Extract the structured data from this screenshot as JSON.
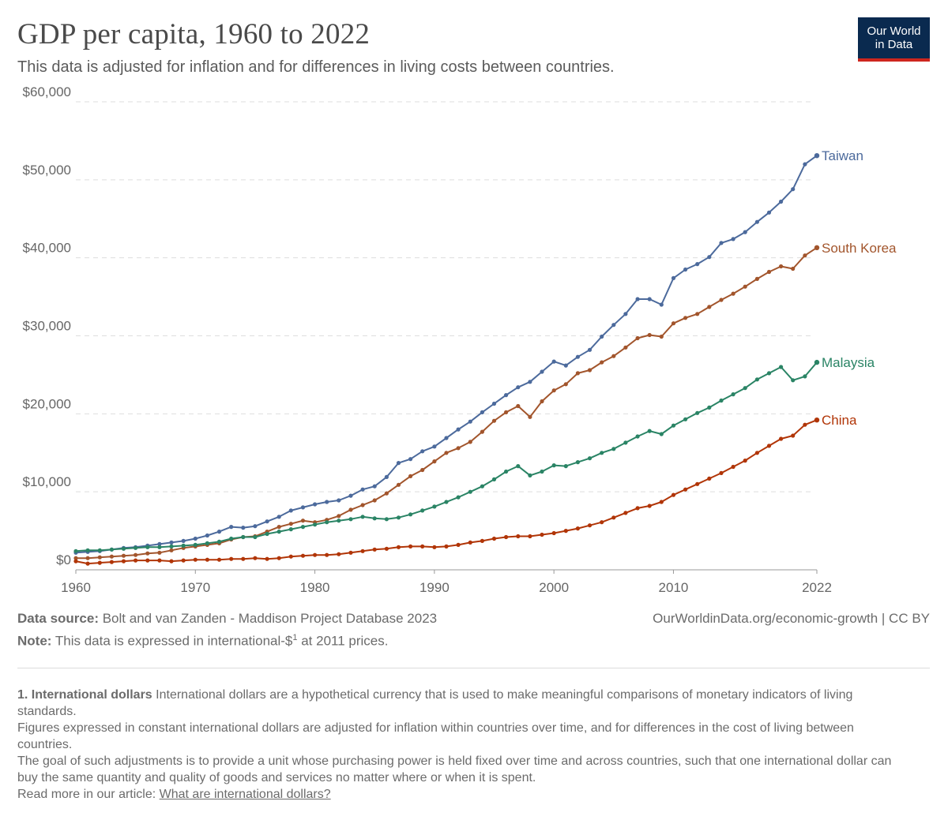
{
  "header": {
    "title": "GDP per capita, 1960 to 2022",
    "subtitle": "This data is adjusted for inflation and for differences in living costs between countries."
  },
  "logo": {
    "line1": "Our World",
    "line2": "in Data"
  },
  "colors": {
    "Taiwan": "#4c6a9c",
    "South Korea": "#a2552c",
    "Malaysia": "#2a8465",
    "China": "#b13507",
    "logo_bg": "#0a2a4f",
    "logo_accent": "#ce261e"
  },
  "footer": {
    "source_label": "Data source:",
    "source_text": "Bolt and van Zanden - Maddison Project Database 2023",
    "url": "OurWorldinData.org/economic-growth | CC BY",
    "note_label": "Note:",
    "note_text": "This data is expressed in international-$",
    "note_sup": "1",
    "note_suffix": " at 2011 prices."
  },
  "footnotes": {
    "term": "1. International dollars",
    "p1": "International dollars are a hypothetical currency that is used to make meaningful comparisons of monetary indicators of living standards.",
    "p2": "Figures expressed in constant international dollars are adjusted for inflation within countries over time, and for differences in the cost of living between countries.",
    "p3": "The goal of such adjustments is to provide a unit whose purchasing power is held fixed over time and across countries, such that one international dollar can buy the same quantity and quality of goods and services no matter where or when it is spent.",
    "read_more": "Read more in our article:",
    "link_text": "What are international dollars?"
  },
  "chart_data": {
    "type": "line",
    "xlim": [
      1960,
      2022
    ],
    "ylim": [
      0,
      60000
    ],
    "x_ticks": [
      1960,
      1970,
      1980,
      1990,
      2000,
      2010,
      2022
    ],
    "x_tick_labels": [
      "1960",
      "1970",
      "1980",
      "1990",
      "2000",
      "2010",
      "2022"
    ],
    "y_ticks": [
      0,
      10000,
      20000,
      30000,
      40000,
      50000,
      60000
    ],
    "y_tick_labels": [
      "$0",
      "$10,000",
      "$20,000",
      "$30,000",
      "$40,000",
      "$50,000",
      "$60,000"
    ],
    "grid": "horizontal dashed",
    "legend": "line-end labels",
    "x_start": 1960,
    "series": [
      {
        "name": "Taiwan",
        "values": [
          2200,
          2300,
          2400,
          2600,
          2800,
          2900,
          3100,
          3300,
          3500,
          3700,
          4000,
          4400,
          4900,
          5500,
          5400,
          5600,
          6200,
          6800,
          7600,
          8000,
          8400,
          8700,
          8900,
          9500,
          10300,
          10700,
          11900,
          13700,
          14200,
          15200,
          15800,
          16900,
          18000,
          19000,
          20200,
          21300,
          22400,
          23400,
          24100,
          25400,
          26700,
          26200,
          27300,
          28200,
          29900,
          31400,
          32800,
          34700,
          34700,
          34000,
          37400,
          38500,
          39200,
          40100,
          41900,
          42400,
          43300,
          44600,
          45800,
          47200,
          48800,
          52000,
          53100
        ]
      },
      {
        "name": "South Korea",
        "values": [
          1500,
          1500,
          1600,
          1700,
          1800,
          1900,
          2100,
          2200,
          2500,
          2800,
          3000,
          3200,
          3400,
          3900,
          4200,
          4300,
          4900,
          5500,
          5900,
          6300,
          6100,
          6400,
          6900,
          7700,
          8300,
          8900,
          9800,
          10900,
          12000,
          12800,
          13900,
          15000,
          15600,
          16400,
          17700,
          19100,
          20200,
          21000,
          19600,
          21600,
          23000,
          23800,
          25200,
          25600,
          26600,
          27400,
          28500,
          29700,
          30100,
          29900,
          31600,
          32300,
          32800,
          33700,
          34600,
          35400,
          36300,
          37300,
          38200,
          38900,
          38600,
          40300,
          41300
        ]
      },
      {
        "name": "Malaysia",
        "values": [
          2400,
          2500,
          2500,
          2600,
          2700,
          2800,
          2900,
          2900,
          3000,
          3100,
          3200,
          3400,
          3600,
          4000,
          4200,
          4200,
          4600,
          4900,
          5200,
          5500,
          5800,
          6100,
          6300,
          6500,
          6800,
          6600,
          6500,
          6700,
          7100,
          7600,
          8100,
          8700,
          9300,
          10000,
          10700,
          11600,
          12600,
          13300,
          12100,
          12600,
          13400,
          13300,
          13800,
          14300,
          15000,
          15500,
          16300,
          17100,
          17800,
          17400,
          18500,
          19300,
          20100,
          20800,
          21700,
          22500,
          23300,
          24400,
          25200,
          26000,
          24300,
          24800,
          26600
        ]
      },
      {
        "name": "China",
        "values": [
          1100,
          800,
          900,
          1000,
          1100,
          1200,
          1200,
          1200,
          1100,
          1200,
          1300,
          1300,
          1300,
          1400,
          1400,
          1500,
          1400,
          1500,
          1700,
          1800,
          1900,
          1900,
          2000,
          2200,
          2400,
          2600,
          2700,
          2900,
          3000,
          3000,
          2900,
          3000,
          3200,
          3500,
          3700,
          4000,
          4200,
          4300,
          4300,
          4500,
          4700,
          5000,
          5300,
          5700,
          6100,
          6700,
          7300,
          7900,
          8200,
          8700,
          9600,
          10300,
          11000,
          11700,
          12400,
          13200,
          14000,
          15000,
          15900,
          16800,
          17200,
          18600,
          19200
        ]
      }
    ]
  }
}
